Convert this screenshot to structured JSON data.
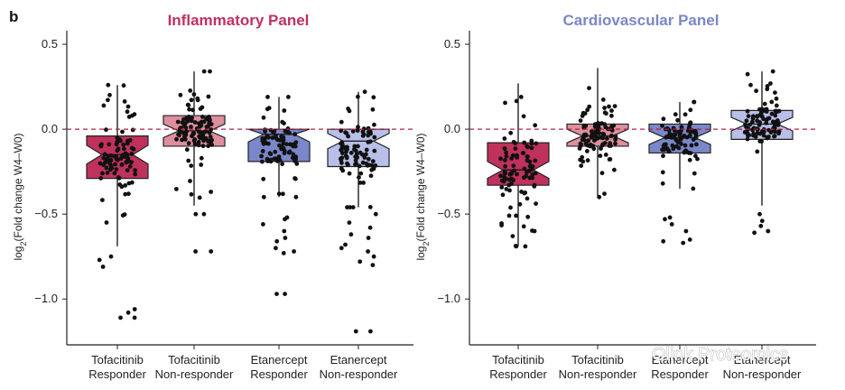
{
  "figure_label": "b",
  "watermark": "Olink Proteomics",
  "colors": {
    "tofa_responder": "#c0315c",
    "tofa_nonresponder": "#de8e9c",
    "etan_responder": "#7a87c9",
    "etan_nonresponder": "#b8bfe8",
    "inflammatory_title": "#c0315c",
    "cardiovascular_title": "#7a87c9",
    "reference_line": "#b02045"
  },
  "chart_data": [
    {
      "type": "box",
      "title": "Inflammatory Panel",
      "xlabel": "",
      "ylabel": "log2(Fold change W4–W0)",
      "ylabel_parts": {
        "pre": "log",
        "sub": "2",
        "post": "(Fold change W4–W0)"
      },
      "ylim": [
        -1.27,
        0.58
      ],
      "yticks": [
        0.5,
        0.0,
        -0.5,
        -1.0
      ],
      "ytick_labels": [
        "0.5",
        "0.0",
        "−0.5",
        "−1.0"
      ],
      "reference_line": 0.0,
      "notched": true,
      "categories": [
        {
          "line1": "Tofacitinib",
          "line2": "Responder"
        },
        {
          "line1": "Tofacitinib",
          "line2": "Non-responder"
        },
        {
          "line1": "Etanercept",
          "line2": "Responder"
        },
        {
          "line1": "Etanercept",
          "line2": "Non-responder"
        }
      ],
      "boxes": [
        {
          "q1": -0.29,
          "median": -0.15,
          "q3": -0.04,
          "whisker_low": -0.69,
          "whisker_high": 0.26,
          "notch": 0.055,
          "color_key": "tofa_responder",
          "n": 90,
          "outliers": [
            -0.75,
            -0.77,
            -0.81,
            -1.06,
            -1.08,
            -1.11,
            -1.11
          ]
        },
        {
          "q1": -0.1,
          "median": -0.01,
          "q3": 0.08,
          "whisker_low": -0.45,
          "whisker_high": 0.34,
          "notch": 0.04,
          "color_key": "tofa_nonresponder",
          "n": 100,
          "outliers": [
            -0.5,
            -0.5,
            -0.72,
            -0.72
          ]
        },
        {
          "q1": -0.19,
          "median": -0.03,
          "q3": 0.0,
          "whisker_low": -0.4,
          "whisker_high": 0.19,
          "notch": 0.045,
          "color_key": "etan_responder",
          "n": 85,
          "outliers": [
            -0.52,
            -0.53,
            -0.56,
            -0.6,
            -0.64,
            -0.66,
            -0.7,
            -0.72,
            -0.73,
            -0.97,
            -0.97
          ]
        },
        {
          "q1": -0.22,
          "median": -0.07,
          "q3": 0.0,
          "whisker_low": -0.46,
          "whisker_high": 0.22,
          "notch": 0.045,
          "color_key": "etan_nonresponder",
          "n": 90,
          "outliers": [
            -0.5,
            -0.55,
            -0.58,
            -0.62,
            -0.64,
            -0.68,
            -0.7,
            -0.72,
            -0.75,
            -0.78,
            -0.8,
            -1.19,
            -1.19
          ]
        }
      ]
    },
    {
      "type": "box",
      "title": "Cardiovascular Panel",
      "xlabel": "",
      "ylabel": "log2(Fold change W4–W0)",
      "ylabel_parts": {
        "pre": "log",
        "sub": "2",
        "post": "(Fold change W4–W0)"
      },
      "ylim": [
        -1.27,
        0.58
      ],
      "yticks": [
        0.5,
        0.0,
        -0.5,
        -1.0
      ],
      "ytick_labels": [
        "0.5",
        "0.0",
        "−0.5",
        "−1.0"
      ],
      "reference_line": 0.0,
      "notched": true,
      "categories": [
        {
          "line1": "Tofacitinib",
          "line2": "Responder"
        },
        {
          "line1": "Tofacitinib",
          "line2": "Non-responder"
        },
        {
          "line1": "Etanercept",
          "line2": "Responder"
        },
        {
          "line1": "Etanercept",
          "line2": "Non-responder"
        }
      ],
      "boxes": [
        {
          "q1": -0.33,
          "median": -0.24,
          "q3": -0.08,
          "whisker_low": -0.69,
          "whisker_high": 0.27,
          "notch": 0.05,
          "color_key": "tofa_responder",
          "n": 90,
          "outliers": [
            -0.6,
            -0.63,
            -0.69
          ]
        },
        {
          "q1": -0.1,
          "median": -0.04,
          "q3": 0.03,
          "whisker_low": -0.4,
          "whisker_high": 0.36,
          "notch": 0.04,
          "color_key": "tofa_nonresponder",
          "n": 100,
          "outliers": [
            -0.38,
            -0.4
          ]
        },
        {
          "q1": -0.14,
          "median": -0.05,
          "q3": 0.03,
          "whisker_low": -0.35,
          "whisker_high": 0.16,
          "notch": 0.04,
          "color_key": "etan_responder",
          "n": 85,
          "outliers": [
            -0.52,
            -0.53,
            -0.56,
            -0.6,
            -0.65,
            -0.66,
            -0.67
          ]
        },
        {
          "q1": -0.06,
          "median": 0.03,
          "q3": 0.11,
          "whisker_low": -0.45,
          "whisker_high": 0.34,
          "notch": 0.04,
          "color_key": "etan_nonresponder",
          "n": 95,
          "outliers": [
            -0.5,
            -0.54,
            -0.57,
            -0.6,
            -0.61
          ]
        }
      ]
    }
  ]
}
